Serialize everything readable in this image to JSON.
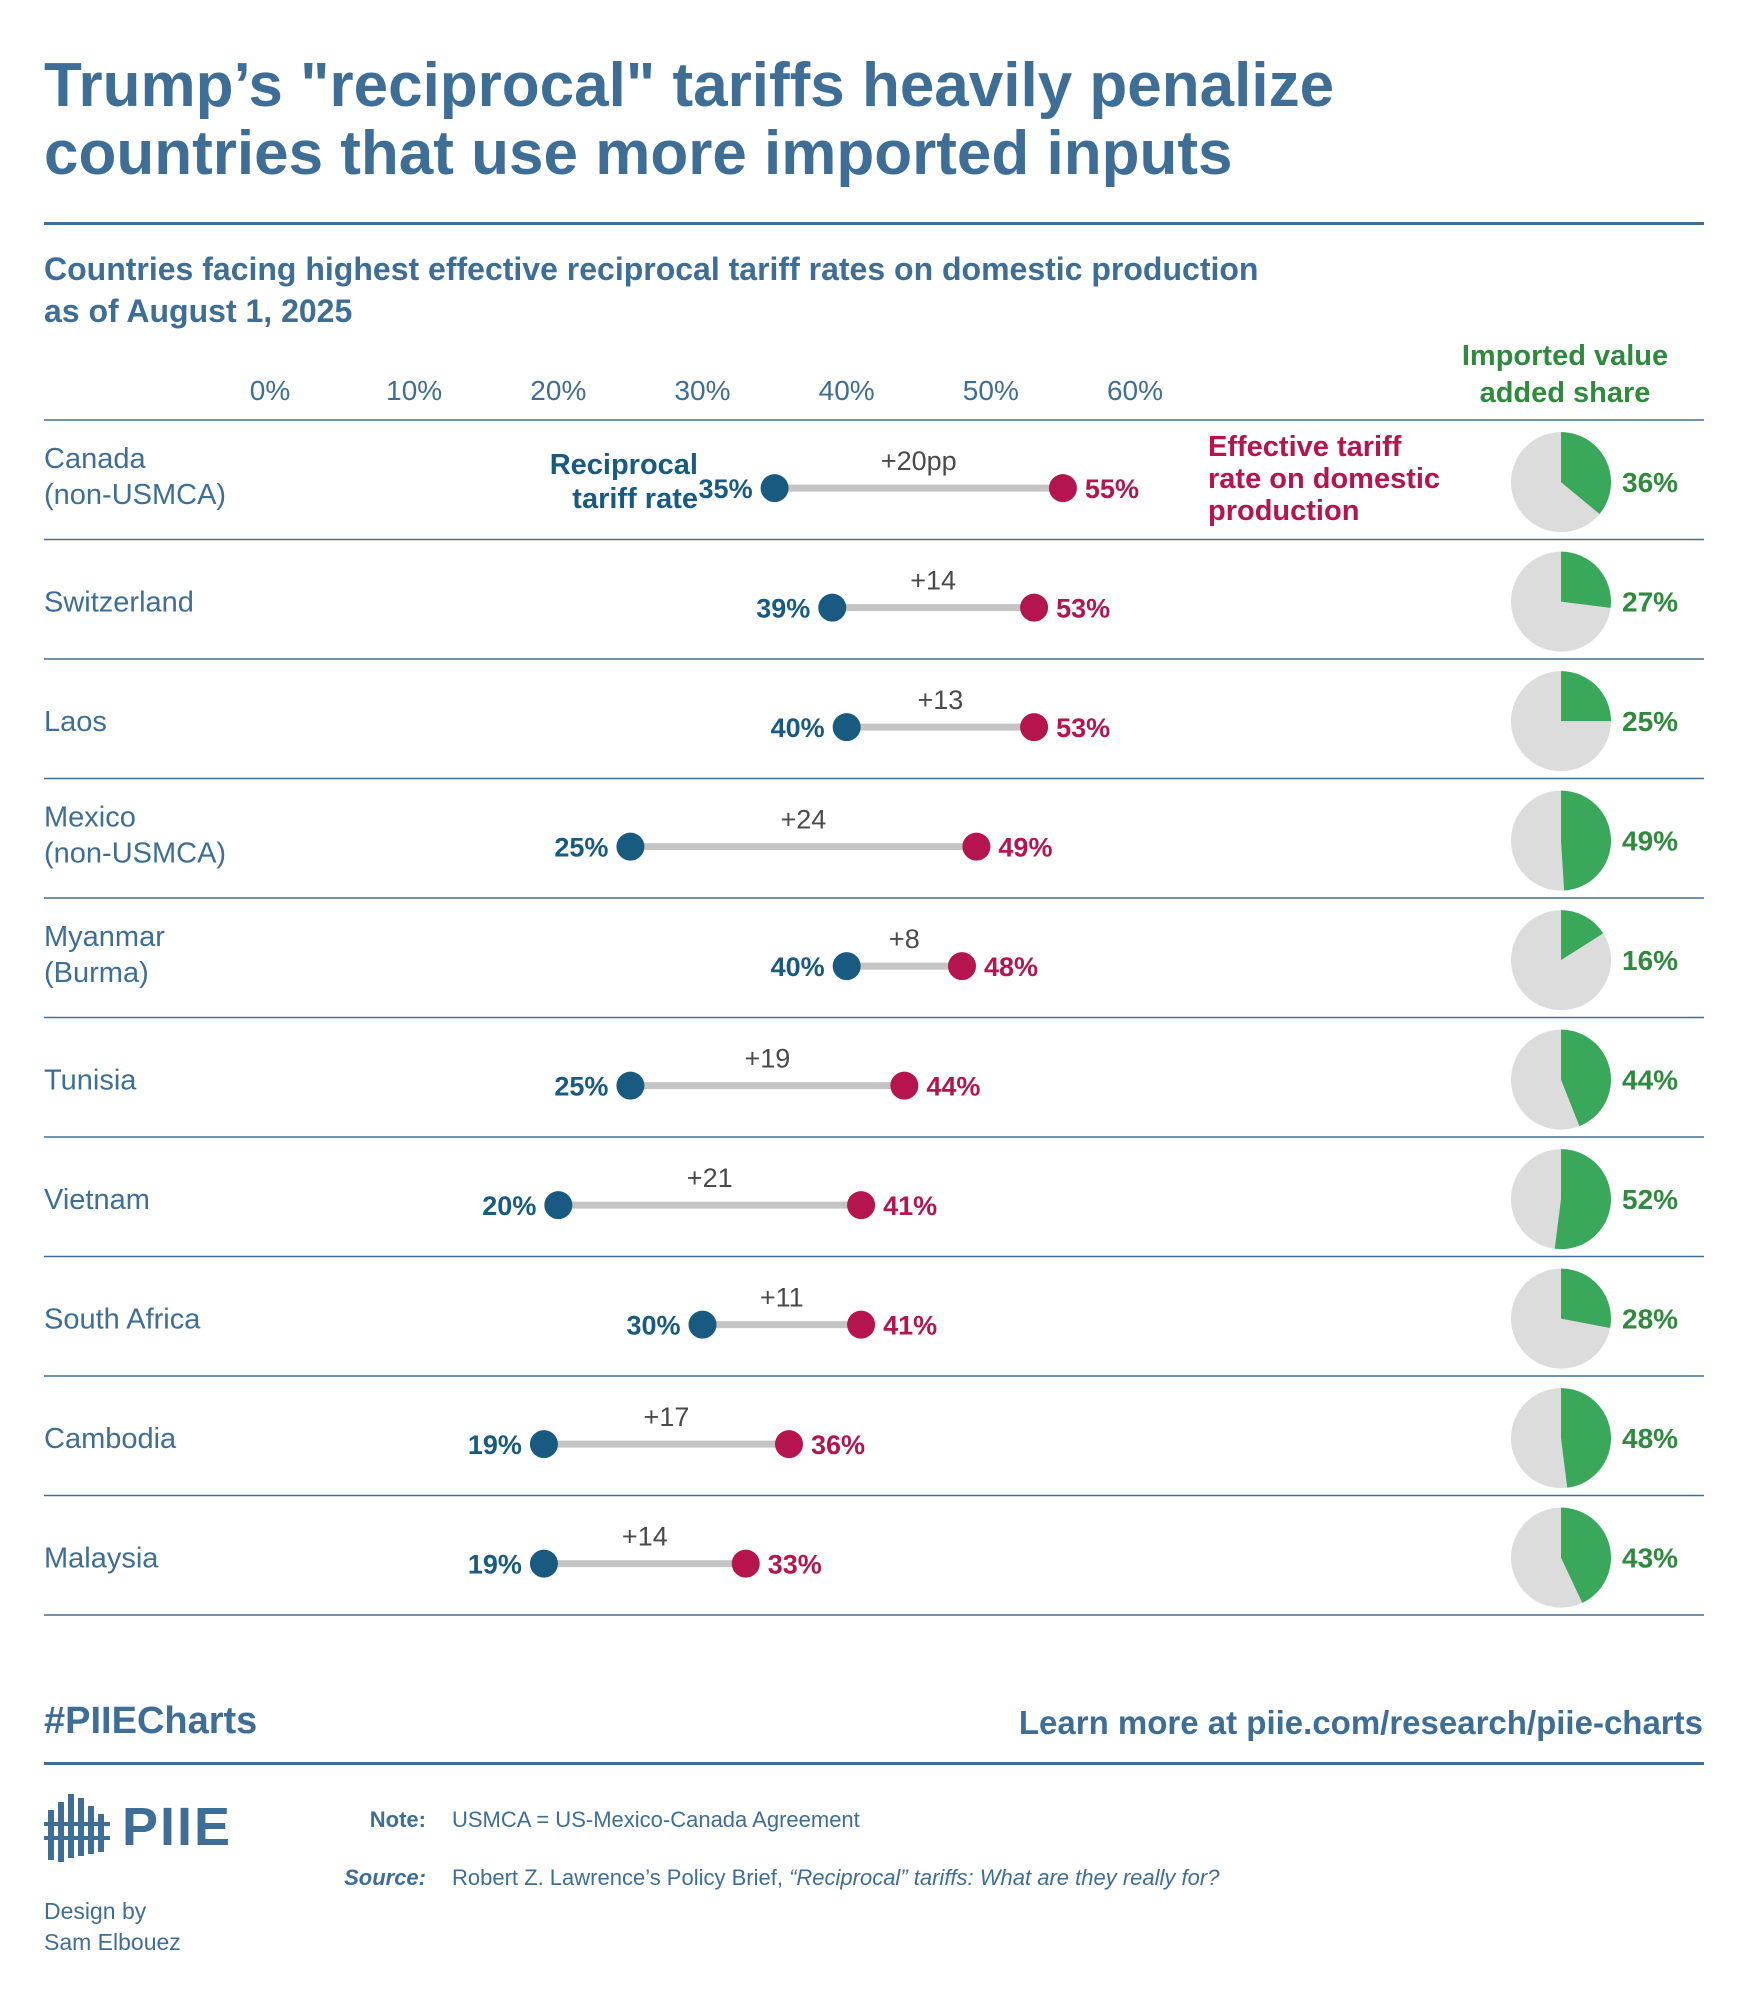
{
  "title": {
    "line1": "Trump’s \"reciprocal\" tariffs heavily penalize",
    "line2": "countries that use more imported inputs"
  },
  "subtitle": {
    "line1": "Countries facing highest effective reciprocal tariff rates on domestic production",
    "line2": "as of August 1, 2025"
  },
  "pie_column_title": {
    "line1": "Imported value",
    "line2": "added share"
  },
  "colors": {
    "reciprocal": "#195a80",
    "effective": "#b5144f",
    "connector": "#c4c4c4",
    "pie_fill": "#3aa85a",
    "pie_bg": "#dcdcdc",
    "pie_label": "#2f8a3e",
    "text_blue": "#3e6e96",
    "gap_label": "#4a4a4a"
  },
  "chart_data": {
    "type": "dumbbell",
    "x_ticks": [
      "0%",
      "10%",
      "20%",
      "30%",
      "40%",
      "50%",
      "60%"
    ],
    "xlim": [
      0,
      60
    ],
    "legend_left": {
      "line1": "Reciprocal",
      "line2": "tariff rate"
    },
    "legend_right": {
      "line1": "Effective tariff",
      "line2": "rate on domestic",
      "line3": "production"
    },
    "rows": [
      {
        "country": [
          "Canada",
          "(non-USMCA)"
        ],
        "reciprocal": 35,
        "effective": 55,
        "reciprocal_label": "35%",
        "effective_label": "55%",
        "gap_label": "+20pp",
        "imported_share": 36,
        "imported_label": "36%"
      },
      {
        "country": [
          "Switzerland"
        ],
        "reciprocal": 39,
        "effective": 53,
        "reciprocal_label": "39%",
        "effective_label": "53%",
        "gap_label": "+14",
        "imported_share": 27,
        "imported_label": "27%"
      },
      {
        "country": [
          "Laos"
        ],
        "reciprocal": 40,
        "effective": 53,
        "reciprocal_label": "40%",
        "effective_label": "53%",
        "gap_label": "+13",
        "imported_share": 25,
        "imported_label": "25%"
      },
      {
        "country": [
          "Mexico",
          "(non-USMCA)"
        ],
        "reciprocal": 25,
        "effective": 49,
        "reciprocal_label": "25%",
        "effective_label": "49%",
        "gap_label": "+24",
        "imported_share": 49,
        "imported_label": "49%"
      },
      {
        "country": [
          "Myanmar",
          "(Burma)"
        ],
        "reciprocal": 40,
        "effective": 48,
        "reciprocal_label": "40%",
        "effective_label": "48%",
        "gap_label": "+8",
        "imported_share": 16,
        "imported_label": "16%"
      },
      {
        "country": [
          "Tunisia"
        ],
        "reciprocal": 25,
        "effective": 44,
        "reciprocal_label": "25%",
        "effective_label": "44%",
        "gap_label": "+19",
        "imported_share": 44,
        "imported_label": "44%"
      },
      {
        "country": [
          "Vietnam"
        ],
        "reciprocal": 20,
        "effective": 41,
        "reciprocal_label": "20%",
        "effective_label": "41%",
        "gap_label": "+21",
        "imported_share": 52,
        "imported_label": "52%"
      },
      {
        "country": [
          "South Africa"
        ],
        "reciprocal": 30,
        "effective": 41,
        "reciprocal_label": "30%",
        "effective_label": "41%",
        "gap_label": "+11",
        "imported_share": 28,
        "imported_label": "28%"
      },
      {
        "country": [
          "Cambodia"
        ],
        "reciprocal": 19,
        "effective": 36,
        "reciprocal_label": "19%",
        "effective_label": "36%",
        "gap_label": "+17",
        "imported_share": 48,
        "imported_label": "48%"
      },
      {
        "country": [
          "Malaysia"
        ],
        "reciprocal": 19,
        "effective": 33,
        "reciprocal_label": "19%",
        "effective_label": "33%",
        "gap_label": "+14",
        "imported_share": 43,
        "imported_label": "43%"
      }
    ]
  },
  "footer": {
    "hashtag": "#PIIECharts",
    "link": "Learn more at piie.com/research/piie-charts",
    "logo_text": "PIIE",
    "credit_line1": "Design by",
    "credit_line2": "Sam Elbouez",
    "note_label": "Note:",
    "note_text": "USMCA = US-Mexico-Canada Agreement",
    "source_label": "Source:",
    "source_text": "Robert Z. Lawrence’s Policy Brief, ",
    "source_title": "“Reciprocal” tariffs: What are they really for?"
  }
}
